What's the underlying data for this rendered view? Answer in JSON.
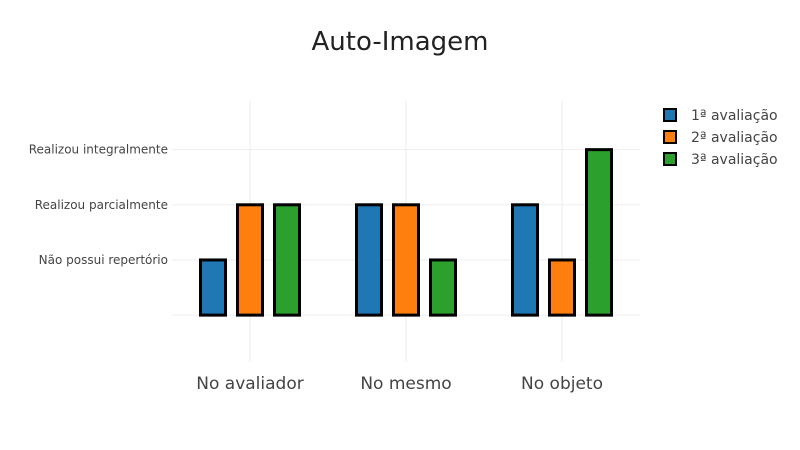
{
  "chart_data": {
    "type": "bar",
    "title": "Auto-Imagem",
    "categories": [
      "No avaliador",
      "No mesmo",
      "No objeto"
    ],
    "y_levels": [
      {
        "value": 1,
        "label": "Não possui repertório"
      },
      {
        "value": 2,
        "label": "Realizou parcialmente"
      },
      {
        "value": 3,
        "label": "Realizou integralmente"
      }
    ],
    "ylim": [
      -0.85,
      3.9
    ],
    "series": [
      {
        "name": "1ª avaliação",
        "color": "#1f77b4",
        "values": [
          1,
          2,
          2
        ]
      },
      {
        "name": "2ª avaliação",
        "color": "#ff7f0e",
        "values": [
          2,
          2,
          1
        ]
      },
      {
        "name": "3ª avaliação",
        "color": "#2ca02c",
        "values": [
          2,
          1,
          3
        ]
      }
    ],
    "bar_border_color": "#000000",
    "grid": true,
    "legend_position": "top-right"
  }
}
